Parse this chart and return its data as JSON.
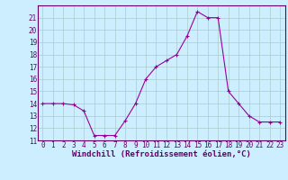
{
  "x": [
    0,
    1,
    2,
    3,
    4,
    5,
    6,
    7,
    8,
    9,
    10,
    11,
    12,
    13,
    14,
    15,
    16,
    17,
    18,
    19,
    20,
    21,
    22,
    23
  ],
  "y": [
    14.0,
    14.0,
    14.0,
    13.9,
    13.4,
    11.4,
    11.4,
    11.4,
    12.6,
    14.0,
    16.0,
    17.0,
    17.5,
    18.0,
    19.5,
    21.5,
    21.0,
    21.0,
    15.0,
    14.0,
    13.0,
    12.5,
    12.5,
    12.5
  ],
  "line_color": "#990099",
  "marker_color": "#990099",
  "bg_color": "#cceeff",
  "grid_color": "#aacccc",
  "axis_color": "#660066",
  "xlabel": "Windchill (Refroidissement éolien,°C)",
  "xlabel_color": "#660066",
  "tick_color": "#660066",
  "ylim": [
    11,
    22
  ],
  "xlim_min": -0.5,
  "xlim_max": 23.5,
  "yticks": [
    11,
    12,
    13,
    14,
    15,
    16,
    17,
    18,
    19,
    20,
    21
  ],
  "xticks": [
    0,
    1,
    2,
    3,
    4,
    5,
    6,
    7,
    8,
    9,
    10,
    11,
    12,
    13,
    14,
    15,
    16,
    17,
    18,
    19,
    20,
    21,
    22,
    23
  ],
  "tick_fontsize": 5.5,
  "xlabel_fontsize": 6.5
}
